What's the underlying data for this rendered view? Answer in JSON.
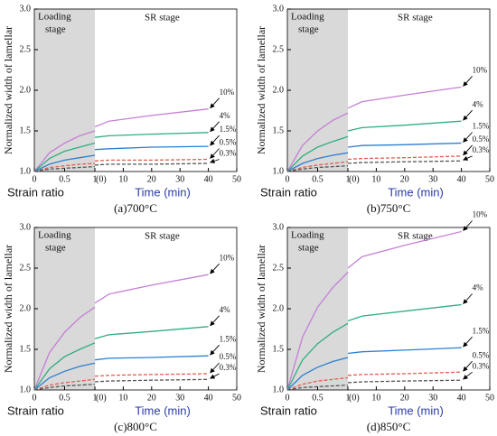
{
  "chart_data": [
    {
      "type": "line",
      "caption": "(a)700°C",
      "ylabel": "Normalized width of lamellar",
      "loading_label": [
        "Loading",
        "stage"
      ],
      "stage_label": "SR stage",
      "xlabel": "Strain ratio",
      "x2label": "Time (min)",
      "xlim": [
        0,
        1
      ],
      "xticks": [
        0,
        0.5,
        1
      ],
      "x2lim": [
        0,
        50
      ],
      "x2ticks": [
        {
          "value": 0,
          "label": "(0)"
        },
        10,
        20,
        30,
        40,
        50
      ],
      "ylim": [
        1,
        3
      ],
      "yticks": [
        {
          "value": 1,
          "label": "1.0"
        },
        1.5,
        {
          "value": 2,
          "label": "2.0"
        },
        2.5,
        {
          "value": 3,
          "label": "3.0"
        }
      ],
      "x": [
        0,
        0.25,
        0.5,
        0.75,
        1
      ],
      "x2": [
        0,
        5,
        20,
        40
      ],
      "series": [
        {
          "name": "10%",
          "color": "#c57fd6",
          "dashed": false,
          "values": [
            1,
            1.23,
            1.35,
            1.44,
            1.5
          ],
          "values2": [
            1.55,
            1.62,
            1.69,
            1.77
          ]
        },
        {
          "name": "4%",
          "color": "#2fae7e",
          "dashed": false,
          "values": [
            1,
            1.16,
            1.25,
            1.3,
            1.35
          ],
          "values2": [
            1.42,
            1.44,
            1.46,
            1.48
          ]
        },
        {
          "name": "1.5%",
          "color": "#2b7fd0",
          "dashed": false,
          "values": [
            1,
            1.09,
            1.14,
            1.17,
            1.2
          ],
          "values2": [
            1.27,
            1.28,
            1.3,
            1.31
          ]
        },
        {
          "name": "0.5%",
          "color": "#e0604f",
          "dashed": true,
          "values": [
            1,
            1.05,
            1.07,
            1.09,
            1.1
          ],
          "values2": [
            1.13,
            1.14,
            1.14,
            1.15
          ]
        },
        {
          "name": "0.3%",
          "color": "#555555",
          "dashed": true,
          "values": [
            1,
            1.03,
            1.04,
            1.05,
            1.06
          ],
          "values2": [
            1.08,
            1.09,
            1.09,
            1.1
          ]
        }
      ]
    },
    {
      "type": "line",
      "caption": "(b)750°C",
      "ylabel": "Normalized width of lamellar",
      "loading_label": [
        "Loading",
        "stage"
      ],
      "stage_label": "SR stage",
      "xlabel": "Strain ratio",
      "x2label": "Time (min)",
      "xlim": [
        0,
        1
      ],
      "xticks": [
        0,
        0.5,
        1
      ],
      "x2lim": [
        0,
        50
      ],
      "x2ticks": [
        {
          "value": 0,
          "label": "(0)"
        },
        10,
        20,
        30,
        40,
        50
      ],
      "ylim": [
        1,
        3
      ],
      "yticks": [
        {
          "value": 1,
          "label": "1.0"
        },
        1.5,
        {
          "value": 2,
          "label": "2.0"
        },
        2.5,
        {
          "value": 3,
          "label": "3.0"
        }
      ],
      "x": [
        0,
        0.25,
        0.5,
        0.75,
        1
      ],
      "x2": [
        0,
        5,
        20,
        40
      ],
      "series": [
        {
          "name": "10%",
          "color": "#c57fd6",
          "dashed": false,
          "values": [
            1,
            1.32,
            1.5,
            1.63,
            1.72
          ],
          "values2": [
            1.78,
            1.86,
            1.94,
            2.04
          ]
        },
        {
          "name": "4%",
          "color": "#2fae7e",
          "dashed": false,
          "values": [
            1,
            1.19,
            1.3,
            1.37,
            1.43
          ],
          "values2": [
            1.5,
            1.54,
            1.57,
            1.62
          ]
        },
        {
          "name": "1.5%",
          "color": "#2b7fd0",
          "dashed": false,
          "values": [
            1,
            1.1,
            1.16,
            1.2,
            1.23
          ],
          "values2": [
            1.3,
            1.32,
            1.33,
            1.35
          ]
        },
        {
          "name": "0.5%",
          "color": "#e0604f",
          "dashed": true,
          "values": [
            1,
            1.05,
            1.08,
            1.1,
            1.12
          ],
          "values2": [
            1.15,
            1.16,
            1.17,
            1.19
          ]
        },
        {
          "name": "0.3%",
          "color": "#555555",
          "dashed": true,
          "values": [
            1,
            1.03,
            1.05,
            1.06,
            1.07
          ],
          "values2": [
            1.1,
            1.11,
            1.12,
            1.13
          ]
        }
      ]
    },
    {
      "type": "line",
      "caption": "(c)800°C",
      "ylabel": "Normalized width of lamellar",
      "loading_label": [
        "Loading",
        "stage"
      ],
      "stage_label": "SR stage",
      "xlabel": "Strain ratio",
      "x2label": "Time (min)",
      "xlim": [
        0,
        1
      ],
      "xticks": [
        0,
        0.5,
        1
      ],
      "x2lim": [
        0,
        50
      ],
      "x2ticks": [
        {
          "value": 0,
          "label": "(0)"
        },
        10,
        20,
        30,
        40,
        50
      ],
      "ylim": [
        1,
        3
      ],
      "yticks": [
        {
          "value": 1,
          "label": "1.0"
        },
        1.5,
        {
          "value": 2,
          "label": "2.0"
        },
        2.5,
        {
          "value": 3,
          "label": "3.0"
        }
      ],
      "x": [
        0,
        0.25,
        0.5,
        0.75,
        1
      ],
      "x2": [
        0,
        5,
        20,
        40
      ],
      "series": [
        {
          "name": "10%",
          "color": "#c57fd6",
          "dashed": false,
          "values": [
            1,
            1.46,
            1.71,
            1.89,
            2.02
          ],
          "values2": [
            2.07,
            2.18,
            2.29,
            2.42
          ]
        },
        {
          "name": "4%",
          "color": "#2fae7e",
          "dashed": false,
          "values": [
            1,
            1.26,
            1.41,
            1.5,
            1.58
          ],
          "values2": [
            1.63,
            1.68,
            1.72,
            1.78
          ]
        },
        {
          "name": "1.5%",
          "color": "#2b7fd0",
          "dashed": false,
          "values": [
            1,
            1.15,
            1.23,
            1.29,
            1.33
          ],
          "values2": [
            1.37,
            1.39,
            1.4,
            1.42
          ]
        },
        {
          "name": "0.5%",
          "color": "#e0604f",
          "dashed": true,
          "values": [
            1,
            1.06,
            1.09,
            1.11,
            1.13
          ],
          "values2": [
            1.17,
            1.18,
            1.19,
            1.2
          ]
        },
        {
          "name": "0.3%",
          "color": "#555555",
          "dashed": true,
          "values": [
            1,
            1.03,
            1.05,
            1.06,
            1.07
          ],
          "values2": [
            1.1,
            1.11,
            1.12,
            1.13
          ]
        }
      ]
    },
    {
      "type": "line",
      "caption": "(d)850°C",
      "ylabel": "Normalized width of lamellar",
      "loading_label": [
        "Loading",
        "stage"
      ],
      "stage_label": "SR stage",
      "xlabel": "Strain ratio",
      "x2label": "Time (min)",
      "xlim": [
        0,
        1
      ],
      "xticks": [
        0,
        0.5,
        1
      ],
      "x2lim": [
        0,
        50
      ],
      "x2ticks": [
        {
          "value": 0,
          "label": "(0)"
        },
        10,
        20,
        30,
        40,
        50
      ],
      "ylim": [
        1,
        3
      ],
      "yticks": [
        {
          "value": 1,
          "label": "1.0"
        },
        1.5,
        {
          "value": 2,
          "label": "2.0"
        },
        2.5,
        {
          "value": 3,
          "label": "3.0"
        }
      ],
      "x": [
        0,
        0.25,
        0.5,
        0.75,
        1
      ],
      "x2": [
        0,
        5,
        20,
        40
      ],
      "series": [
        {
          "name": "10%",
          "color": "#c57fd6",
          "dashed": false,
          "values": [
            1,
            1.65,
            2.02,
            2.26,
            2.45
          ],
          "values2": [
            2.5,
            2.64,
            2.78,
            2.95
          ]
        },
        {
          "name": "4%",
          "color": "#2fae7e",
          "dashed": false,
          "values": [
            1,
            1.37,
            1.57,
            1.71,
            1.82
          ],
          "values2": [
            1.85,
            1.91,
            1.97,
            2.05
          ]
        },
        {
          "name": "1.5%",
          "color": "#2b7fd0",
          "dashed": false,
          "values": [
            1,
            1.18,
            1.28,
            1.35,
            1.4
          ],
          "values2": [
            1.45,
            1.47,
            1.49,
            1.52
          ]
        },
        {
          "name": "0.5%",
          "color": "#e0604f",
          "dashed": true,
          "values": [
            1,
            1.07,
            1.11,
            1.13,
            1.15
          ],
          "values2": [
            1.18,
            1.19,
            1.2,
            1.22
          ]
        },
        {
          "name": "0.3%",
          "color": "#555555",
          "dashed": true,
          "values": [
            1,
            1.03,
            1.04,
            1.05,
            1.06
          ],
          "values2": [
            1.09,
            1.1,
            1.11,
            1.12
          ]
        }
      ]
    }
  ]
}
